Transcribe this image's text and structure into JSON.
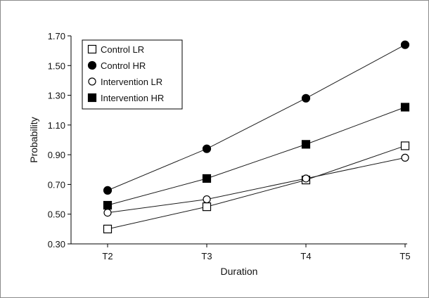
{
  "chart_data": {
    "type": "line",
    "title": "",
    "xlabel": "Duration",
    "ylabel": "Probability",
    "categories": [
      "T2",
      "T3",
      "T4",
      "T5"
    ],
    "ylim": [
      0.3,
      1.7
    ],
    "yticks": [
      "0.30",
      "0.50",
      "0.70",
      "0.90",
      "1.10",
      "1.30",
      "1.50",
      "1.70"
    ],
    "grid": false,
    "legend_position": "top-left",
    "series": [
      {
        "name": "Control LR",
        "marker": "open-square",
        "values": [
          0.4,
          0.55,
          0.73,
          0.96
        ]
      },
      {
        "name": "Control HR",
        "marker": "filled-circle",
        "values": [
          0.66,
          0.94,
          1.28,
          1.64
        ]
      },
      {
        "name": "Intervention LR",
        "marker": "open-circle",
        "values": [
          0.51,
          0.6,
          0.74,
          0.88
        ]
      },
      {
        "name": "Intervention HR",
        "marker": "filled-square",
        "values": [
          0.56,
          0.74,
          0.97,
          1.22
        ]
      }
    ],
    "colors": {
      "line": "#1a1a1a",
      "marker": "#000000",
      "frame": "#8a8a8a"
    }
  }
}
